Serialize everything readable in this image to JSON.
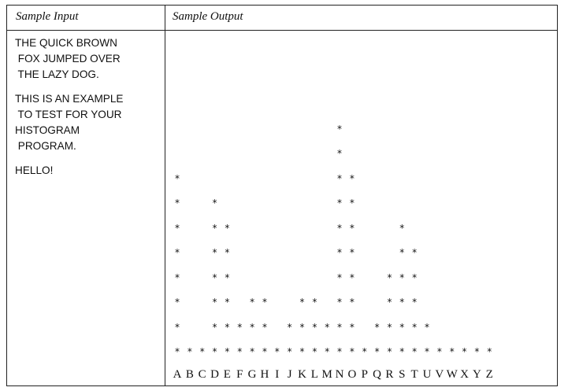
{
  "headers": {
    "input": "Sample Input",
    "output": "Sample Output"
  },
  "sample_input": [
    [
      "THE QUICK BROWN",
      " FOX JUMPED OVER",
      " THE LAZY DOG."
    ],
    [
      "THIS IS AN EXAMPLE",
      " TO TEST FOR YOUR",
      "HISTOGRAM",
      " PROGRAM."
    ],
    [
      "HELLO!"
    ]
  ],
  "histogram": {
    "symbol": "*",
    "letters": [
      "A",
      "B",
      "C",
      "D",
      "E",
      "F",
      "G",
      "H",
      "I",
      "J",
      "K",
      "L",
      "M",
      "N",
      "O",
      "P",
      "Q",
      "R",
      "S",
      "T",
      "U",
      "V",
      "W",
      "X",
      "Y",
      "Z"
    ],
    "counts": [
      8,
      1,
      1,
      7,
      6,
      2,
      3,
      3,
      1,
      2,
      3,
      3,
      2,
      10,
      8,
      1,
      2,
      4,
      6,
      5,
      2,
      1,
      1,
      1,
      1,
      1
    ]
  }
}
